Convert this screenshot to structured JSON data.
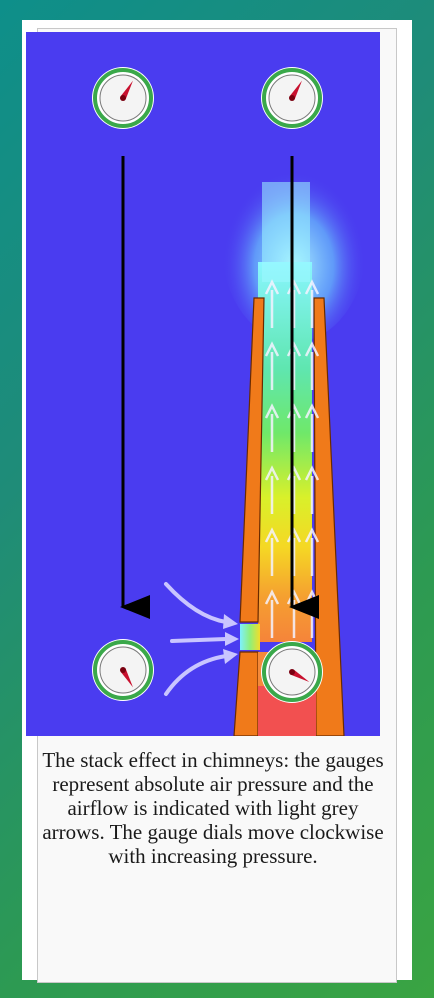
{
  "caption": "The stack effect in chimneys: the gauges represent absolute air pressure and the airflow is indicated with light grey arrows. The gauge dials move clockwise with increasing pressure.",
  "colors": {
    "sky": "#4a3cf0",
    "chimney": "#f07a1a",
    "chimney_base": "#f25050",
    "gauge_ring": "#3aa84a",
    "needle": "#c8102e",
    "arrow_light": "#c9c5ff",
    "flow_cyan": "#7ef0ff",
    "flow_green": "#6fe86a",
    "flow_yellow": "#f2dc2a"
  },
  "gauges": [
    {
      "id": "outside-top",
      "needle_deg": 30
    },
    {
      "id": "inside-top",
      "needle_deg": 30
    },
    {
      "id": "outside-bottom",
      "needle_deg": 150
    },
    {
      "id": "inside-bottom",
      "needle_deg": 120
    }
  ]
}
